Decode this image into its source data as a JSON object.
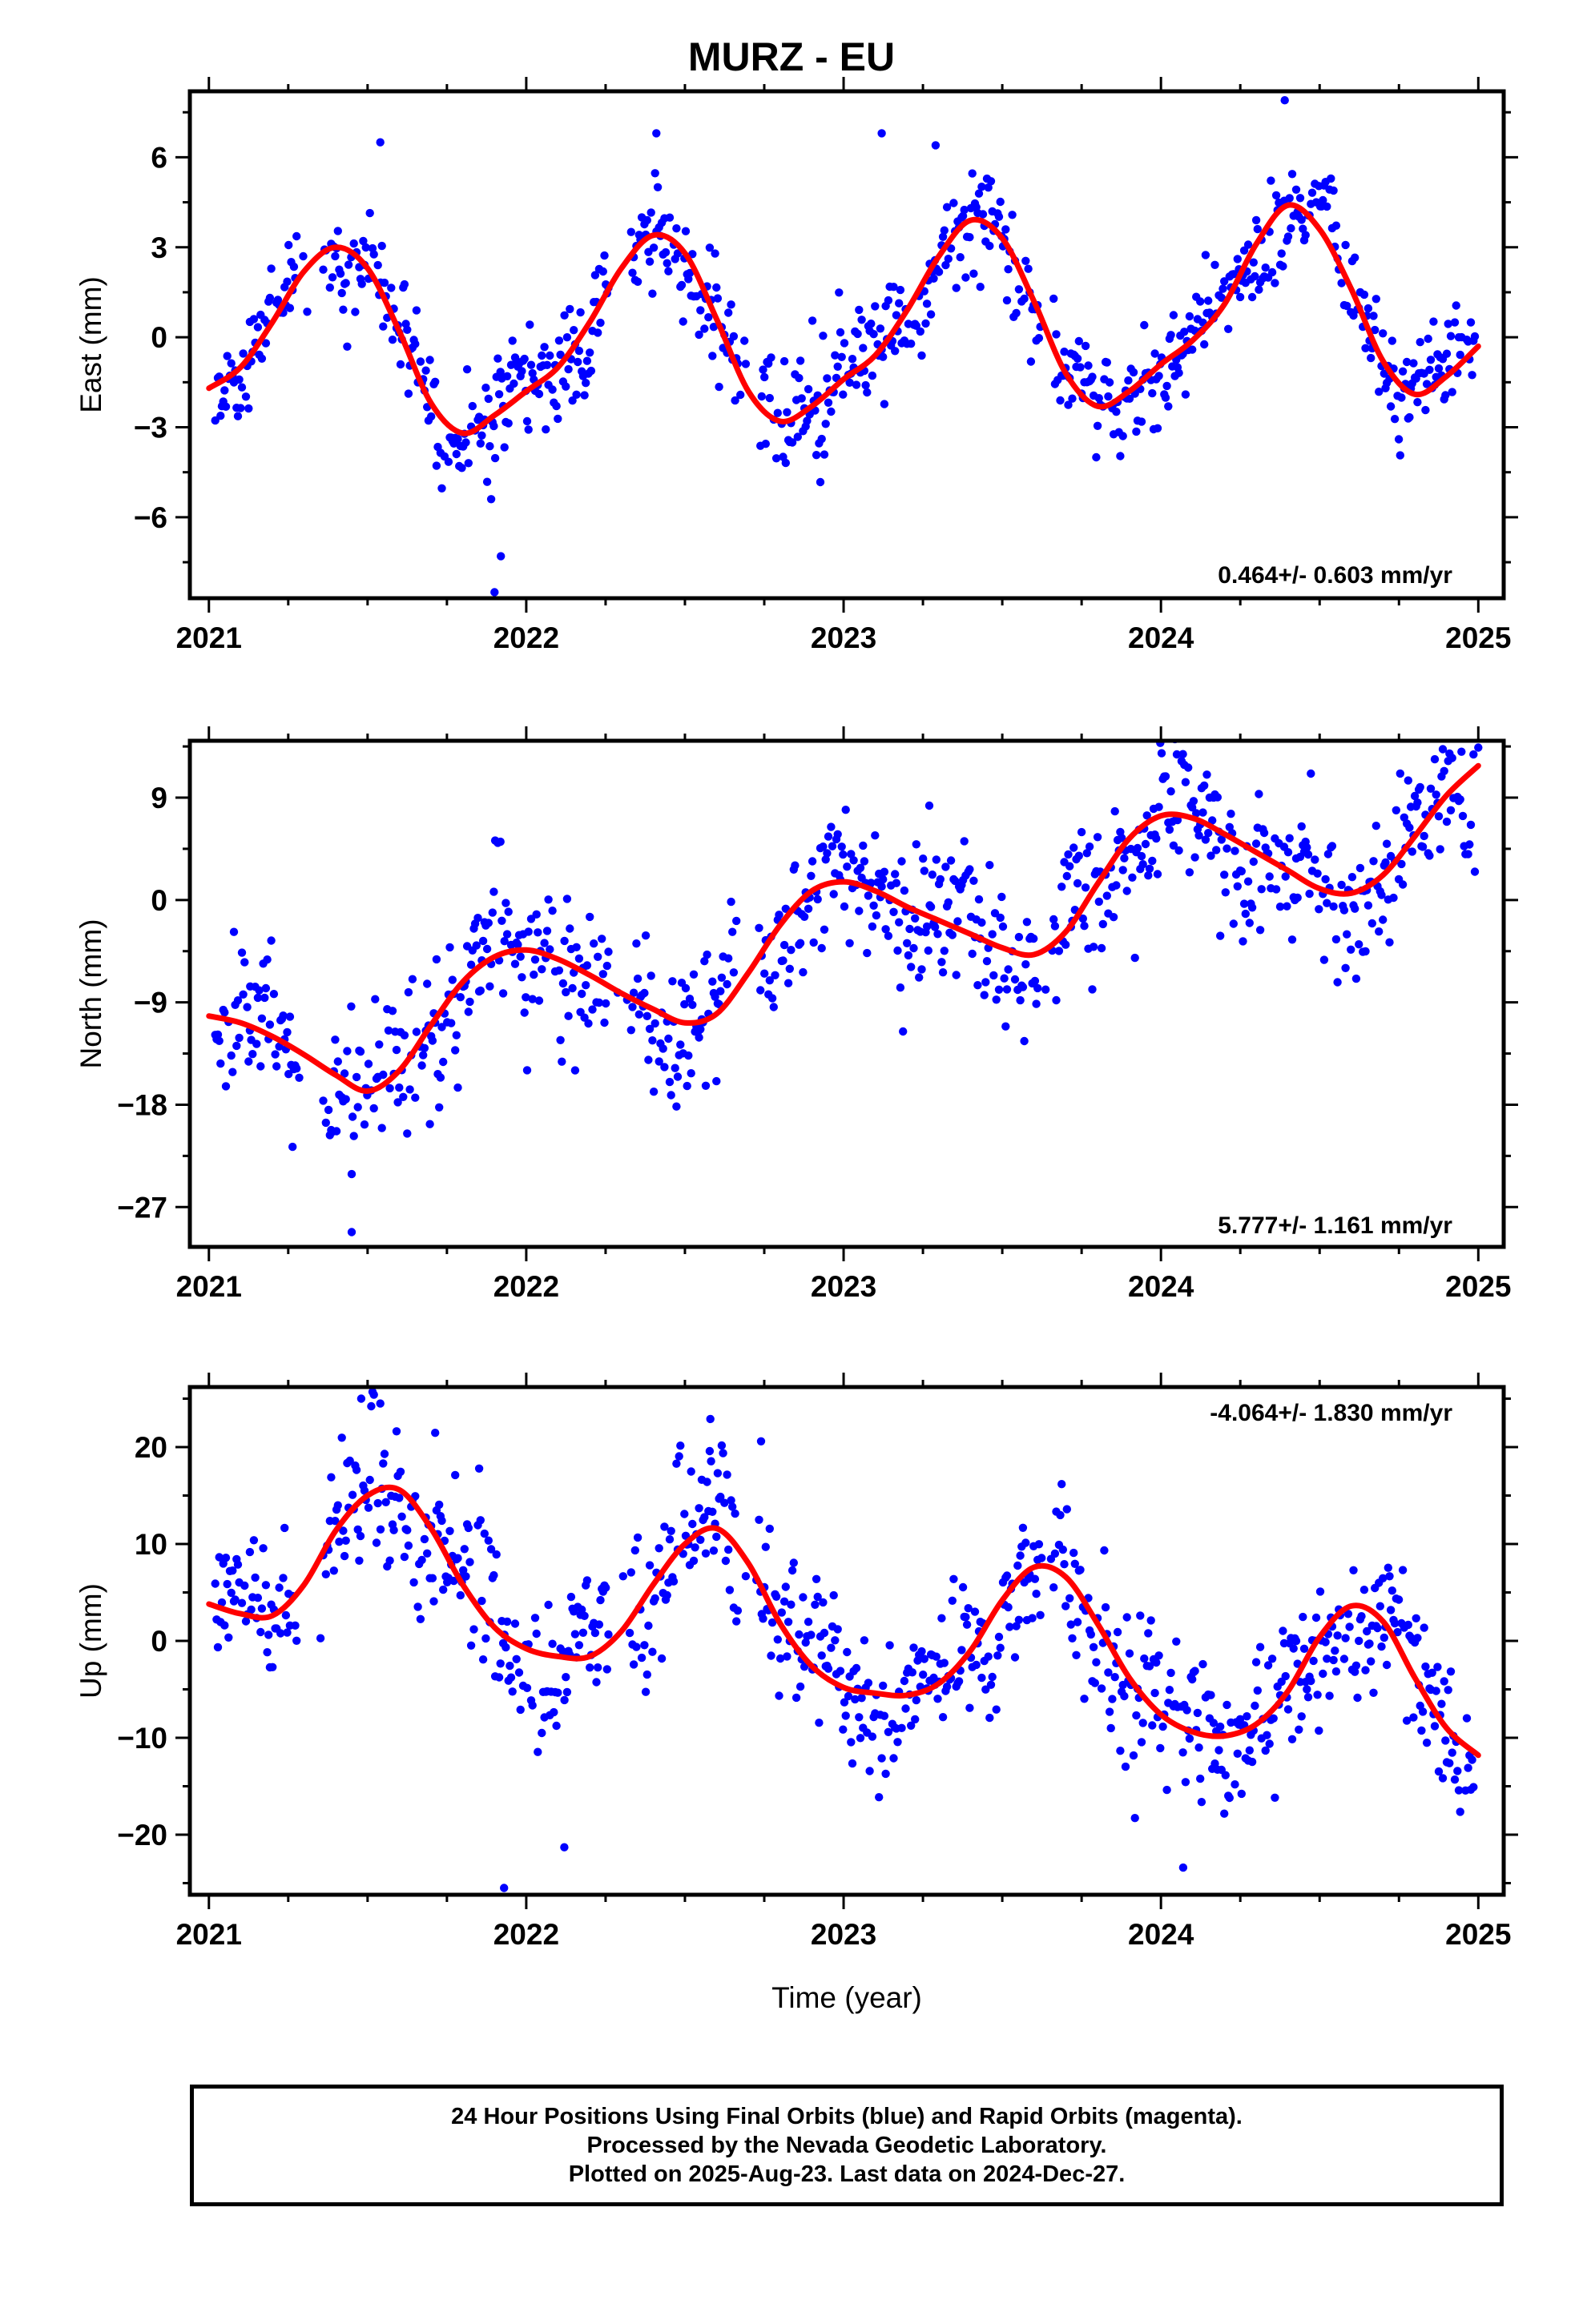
{
  "title": "MURZ - EU",
  "x_axis_label": "Time (year)",
  "footer": {
    "line1": "24 Hour Positions Using Final Orbits (blue) and Rapid Orbits (magenta).",
    "line2": "Processed by the Nevada Geodetic Laboratory.",
    "line3": "Plotted on 2025-Aug-23. Last data on 2024-Dec-27."
  },
  "colors": {
    "points": "#0000ff",
    "fit": "#ff0000",
    "frame": "#000000"
  },
  "chart_data": [
    {
      "type": "scatter",
      "component": "east",
      "ylabel": "East (mm)",
      "rate_text": "0.464+/- 0.603 mm/yr",
      "xlim": [
        2020.94,
        2025.08
      ],
      "ylim": [
        -8.7,
        8.2
      ],
      "yticks": [
        6,
        3,
        0,
        -3,
        -6
      ],
      "ytick_labels": [
        "6",
        "3",
        "0",
        "−3",
        "−6"
      ],
      "xticks": [
        2021,
        2022,
        2023,
        2024,
        2025
      ],
      "xtick_labels": [
        "2021",
        "2022",
        "2023",
        "2024",
        "2025"
      ],
      "fit": {
        "x": [
          2021.0,
          2021.1,
          2021.2,
          2021.3,
          2021.4,
          2021.5,
          2021.6,
          2021.7,
          2021.8,
          2021.9,
          2022.0,
          2022.1,
          2022.2,
          2022.3,
          2022.4,
          2022.5,
          2022.6,
          2022.7,
          2022.8,
          2022.9,
          2023.0,
          2023.1,
          2023.2,
          2023.3,
          2023.4,
          2023.5,
          2023.6,
          2023.7,
          2023.8,
          2023.9,
          2024.0,
          2024.1,
          2024.2,
          2024.3,
          2024.4,
          2024.5,
          2024.6,
          2024.7,
          2024.8,
          2024.9,
          2025.0
        ],
        "y": [
          -1.7,
          -1.0,
          0.5,
          2.2,
          3.0,
          2.3,
          0.2,
          -2.2,
          -3.2,
          -2.6,
          -1.8,
          -1.0,
          0.5,
          2.3,
          3.4,
          2.8,
          0.6,
          -1.8,
          -2.8,
          -2.3,
          -1.4,
          -0.6,
          0.9,
          2.7,
          3.9,
          3.3,
          1.2,
          -1.2,
          -2.3,
          -1.8,
          -0.9,
          -0.1,
          1.1,
          3.1,
          4.4,
          3.6,
          1.6,
          -0.8,
          -1.9,
          -1.3,
          -0.3
        ]
      },
      "points_note": "scatter of daily positions around the fit",
      "extreme_points": [
        [
          2021.9,
          -8.5
        ],
        [
          2021.92,
          -7.3
        ],
        [
          2022.41,
          6.8
        ],
        [
          2023.12,
          6.8
        ],
        [
          2023.29,
          6.4
        ],
        [
          2024.39,
          7.9
        ],
        [
          2021.54,
          6.5
        ]
      ]
    },
    {
      "type": "scatter",
      "component": "north",
      "ylabel": "North (mm)",
      "rate_text": "5.777+/- 1.161 mm/yr",
      "xlim": [
        2020.94,
        2025.08
      ],
      "ylim": [
        -30.5,
        14.0
      ],
      "yticks": [
        9,
        0,
        -9,
        -18,
        -27
      ],
      "ytick_labels": [
        "9",
        "0",
        "−9",
        "−18",
        "−27"
      ],
      "xticks": [
        2021,
        2022,
        2023,
        2024,
        2025
      ],
      "xtick_labels": [
        "2021",
        "2022",
        "2023",
        "2024",
        "2025"
      ],
      "fit": {
        "x": [
          2021.0,
          2021.1,
          2021.2,
          2021.3,
          2021.4,
          2021.5,
          2021.6,
          2021.7,
          2021.8,
          2021.9,
          2022.0,
          2022.1,
          2022.2,
          2022.3,
          2022.4,
          2022.5,
          2022.6,
          2022.7,
          2022.8,
          2022.9,
          2023.0,
          2023.1,
          2023.2,
          2023.3,
          2023.4,
          2023.5,
          2023.6,
          2023.7,
          2023.8,
          2023.9,
          2024.0,
          2024.1,
          2024.2,
          2024.3,
          2024.4,
          2024.5,
          2024.6,
          2024.7,
          2024.8,
          2024.9,
          2025.0
        ],
        "y": [
          -10.2,
          -10.8,
          -12.0,
          -13.6,
          -15.4,
          -16.8,
          -15.0,
          -11.0,
          -7.2,
          -5.0,
          -4.4,
          -5.2,
          -6.6,
          -8.2,
          -9.6,
          -10.8,
          -10.0,
          -6.4,
          -2.2,
          0.8,
          1.6,
          0.8,
          -0.6,
          -1.8,
          -3.0,
          -4.2,
          -4.8,
          -2.8,
          1.4,
          5.4,
          7.4,
          7.2,
          5.8,
          4.2,
          2.6,
          1.0,
          0.6,
          2.2,
          5.6,
          9.2,
          11.8
        ]
      },
      "points_note": "scatter of daily positions around the fit",
      "extreme_points": [
        [
          2021.45,
          -29.2
        ],
        [
          2021.45,
          -24.1
        ],
        [
          2024.05,
          12.8
        ],
        [
          2025.0,
          13.4
        ],
        [
          2023.27,
          8.3
        ],
        [
          2021.13,
          -7.6
        ]
      ]
    },
    {
      "type": "scatter",
      "component": "up",
      "ylabel": "Up (mm)",
      "rate_text": "-4.064+/- 1.830 mm/yr",
      "xlim": [
        2020.94,
        2025.08
      ],
      "ylim": [
        -26.2,
        26.2
      ],
      "yticks": [
        20,
        10,
        0,
        -10,
        -20
      ],
      "ytick_labels": [
        "20",
        "10",
        "0",
        "−10",
        "−20"
      ],
      "xticks": [
        2021,
        2022,
        2023,
        2024,
        2025
      ],
      "xtick_labels": [
        "2021",
        "2022",
        "2023",
        "2024",
        "2025"
      ],
      "fit": {
        "x": [
          2021.0,
          2021.1,
          2021.2,
          2021.3,
          2021.4,
          2021.5,
          2021.6,
          2021.7,
          2021.8,
          2021.9,
          2022.0,
          2022.1,
          2022.2,
          2022.3,
          2022.4,
          2022.5,
          2022.6,
          2022.7,
          2022.8,
          2022.9,
          2023.0,
          2023.1,
          2023.2,
          2023.3,
          2023.4,
          2023.5,
          2023.6,
          2023.7,
          2023.8,
          2023.9,
          2024.0,
          2024.1,
          2024.2,
          2024.3,
          2024.4,
          2024.5,
          2024.6,
          2024.7,
          2024.8,
          2024.9,
          2025.0
        ],
        "y": [
          3.8,
          2.8,
          2.6,
          5.8,
          11.4,
          15.0,
          15.6,
          11.6,
          5.8,
          1.4,
          -0.8,
          -1.6,
          -1.6,
          1.0,
          5.8,
          10.0,
          11.6,
          8.0,
          1.8,
          -2.6,
          -4.8,
          -5.4,
          -5.6,
          -4.4,
          -1.0,
          4.2,
          7.6,
          6.6,
          1.8,
          -3.8,
          -7.6,
          -9.4,
          -9.8,
          -8.6,
          -5.2,
          0.4,
          3.6,
          2.0,
          -3.8,
          -9.0,
          -11.8
        ]
      },
      "points_note": "scatter of daily positions around the fit",
      "extreme_points": [
        [
          2021.48,
          25.0
        ],
        [
          2021.54,
          24.5
        ],
        [
          2022.58,
          22.9
        ],
        [
          2022.74,
          20.6
        ],
        [
          2021.93,
          -25.5
        ],
        [
          2024.07,
          -23.4
        ],
        [
          2022.12,
          -21.3
        ]
      ]
    }
  ]
}
